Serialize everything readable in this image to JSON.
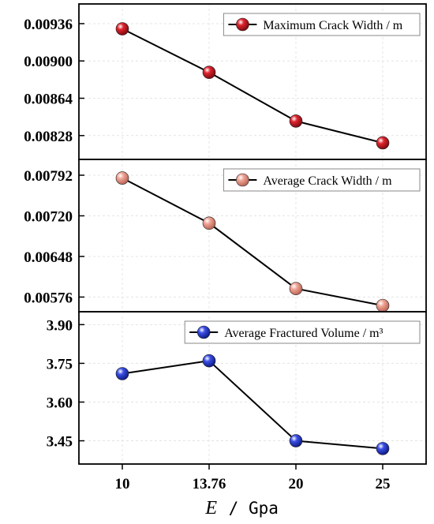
{
  "chart_data": {
    "type": "line",
    "x": [
      "10",
      "13.76",
      "20",
      "25"
    ],
    "xlabel_var": "E",
    "xlabel_sep": " / ",
    "xlabel_unit": "Gpa",
    "panels": [
      {
        "legend": "Maximum Crack Width / m",
        "color": "#e0242e",
        "yticks": [
          "0.00828",
          "0.00864",
          "0.00900",
          "0.00936"
        ],
        "ylim": [
          0.00805,
          0.00955
        ],
        "values": [
          0.00931,
          0.00889,
          0.00842,
          0.00821
        ]
      },
      {
        "legend": "Average Crack Width / m",
        "color": "#f0a596",
        "yticks": [
          "0.00576",
          "0.00648",
          "0.00720",
          "0.00792"
        ],
        "ylim": [
          0.0055,
          0.0082
        ],
        "values": [
          0.00787,
          0.00707,
          0.00591,
          0.00561
        ]
      },
      {
        "legend": "Average Fractured Volume / m³",
        "color": "#3a4ee6",
        "yticks": [
          "3.45",
          "3.60",
          "3.75",
          "3.90"
        ],
        "ylim": [
          3.36,
          3.95
        ],
        "values": [
          3.71,
          3.76,
          3.45,
          3.42
        ]
      }
    ]
  }
}
